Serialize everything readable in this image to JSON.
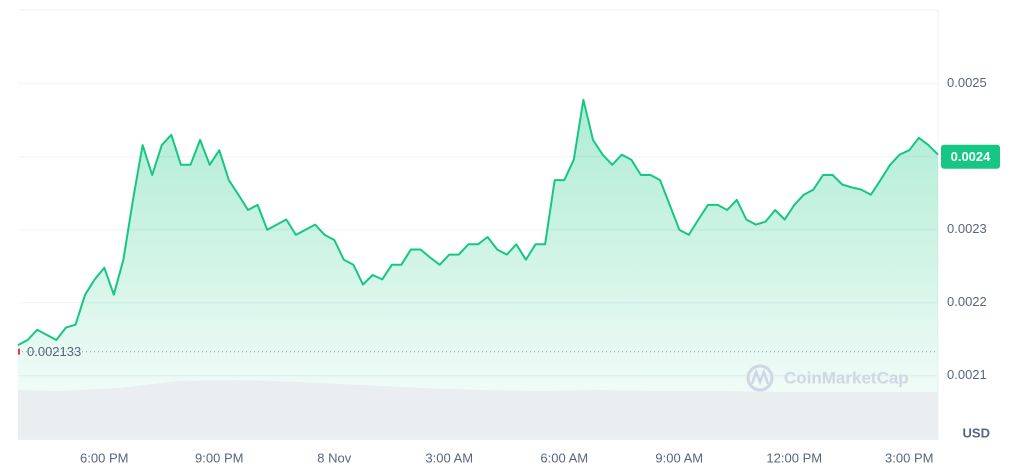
{
  "chart_data": {
    "type": "line",
    "series": [
      {
        "name": null,
        "color": "#16c784",
        "values": [
          0.002142,
          0.002149,
          0.002163,
          0.002156,
          0.002149,
          0.002166,
          0.00217,
          0.002211,
          0.002232,
          0.002248,
          0.002211,
          0.002259,
          0.002341,
          0.002416,
          0.002375,
          0.002416,
          0.00243,
          0.002389,
          0.002389,
          0.002423,
          0.002389,
          0.002409,
          0.002368,
          0.002348,
          0.002327,
          0.002334,
          0.0023,
          0.002307,
          0.002314,
          0.002293,
          0.0023,
          0.002307,
          0.002293,
          0.002286,
          0.002259,
          0.002252,
          0.002225,
          0.002238,
          0.002232,
          0.002252,
          0.002252,
          0.002273,
          0.002273,
          0.002262,
          0.002252,
          0.002266,
          0.002266,
          0.00228,
          0.00228,
          0.00229,
          0.002273,
          0.002266,
          0.00228,
          0.002259,
          0.00228,
          0.00228,
          0.002368,
          0.002368,
          0.002396,
          0.002478,
          0.002423,
          0.002403,
          0.002389,
          0.002403,
          0.002396,
          0.002375,
          0.002375,
          0.002368,
          0.002334,
          0.0023,
          0.002293,
          0.002314,
          0.002334,
          0.002334,
          0.002327,
          0.002341,
          0.002314,
          0.002307,
          0.002311,
          0.002327,
          0.002314,
          0.002334,
          0.002348,
          0.002355,
          0.002375,
          0.002375,
          0.002362,
          0.002358,
          0.002355,
          0.002348,
          0.002368,
          0.002389,
          0.002403,
          0.002409,
          0.002426,
          0.002416,
          0.002403
        ]
      }
    ],
    "xlim": [
      0,
      96
    ],
    "xticks": [
      {
        "value": 9,
        "label": "6:00 PM"
      },
      {
        "value": 21,
        "label": "9:00 PM"
      },
      {
        "value": 33,
        "label": "8 Nov"
      },
      {
        "value": 45,
        "label": "3:00 AM"
      },
      {
        "value": 57,
        "label": "6:00 AM"
      },
      {
        "value": 69,
        "label": "9:00 AM"
      },
      {
        "value": 81,
        "label": "12:00 PM"
      },
      {
        "value": 93,
        "label": "3:00 PM"
      }
    ],
    "ylim": [
      0.002012,
      0.002601
    ],
    "yticks": [
      0.0021,
      0.0022,
      0.0023,
      0.0024,
      0.0025
    ],
    "grid": true,
    "reference_price": 0.002133,
    "current_price": 0.0024,
    "current_price_color": "#16c784",
    "currency": "USD",
    "watermark": "CoinMarketCap"
  }
}
